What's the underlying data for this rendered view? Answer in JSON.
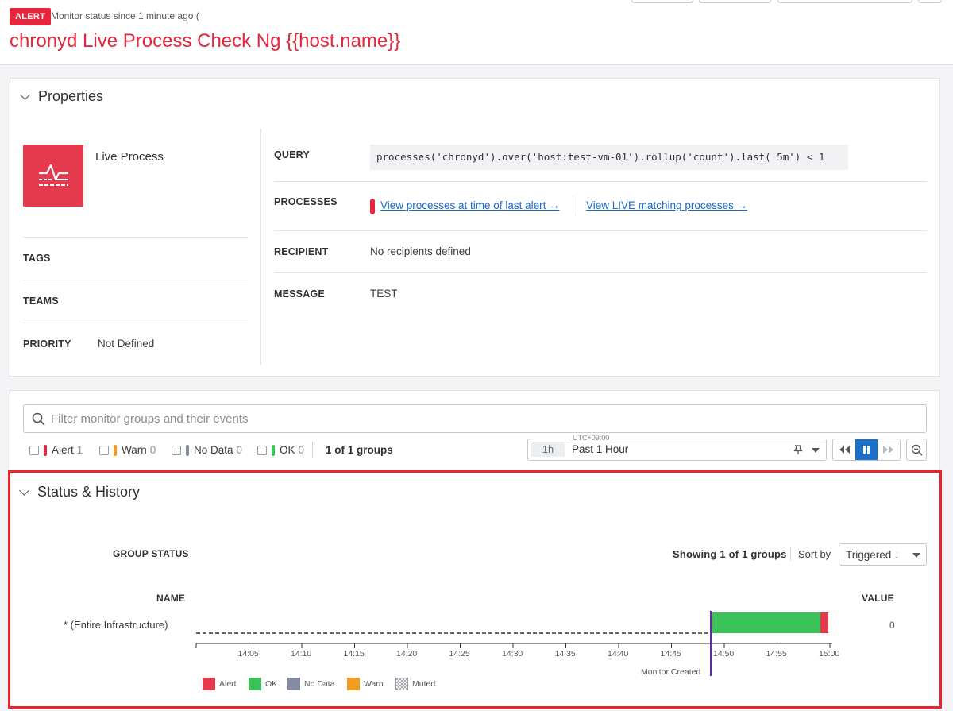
{
  "header": {
    "badge": "ALERT",
    "since": "Monitor status since 1 minute ago (",
    "title": "chronyd Live Process Check Ng {{host.name}}"
  },
  "properties": {
    "section_title": "Properties",
    "monitor_type": "Live Process",
    "tags_label": "TAGS",
    "teams_label": "TEAMS",
    "priority_label": "PRIORITY",
    "priority_value": "Not Defined",
    "query_label": "QUERY",
    "query_value": "processes('chronyd').over('host:test-vm-01').rollup('count').last('5m') < 1",
    "processes_label": "PROCESSES",
    "link_last_alert": "View processes at time of last alert →",
    "link_live": "View LIVE matching processes →",
    "recipient_label": "RECIPIENT",
    "recipient_value": "No recipients defined",
    "message_label": "MESSAGE",
    "message_value": "TEST"
  },
  "filters": {
    "search_placeholder": "Filter monitor groups and their events",
    "items": [
      {
        "label": "Alert",
        "count": "1",
        "color": "#e5263d"
      },
      {
        "label": "Warn",
        "count": "0",
        "color": "#f59a23"
      },
      {
        "label": "No Data",
        "count": "0",
        "color": "#858ba0"
      },
      {
        "label": "OK",
        "count": "0",
        "color": "#3bc35a"
      }
    ],
    "groups_count": "1 of 1 groups",
    "timezone": "UTC+09:00",
    "time_badge": "1h",
    "time_range": "Past 1 Hour"
  },
  "status_history": {
    "section_title": "Status & History",
    "group_status_label": "GROUP STATUS",
    "showing": "Showing 1 of 1 groups",
    "sort_by_label": "Sort by",
    "sort_value": "Triggered ↓",
    "name_header": "NAME",
    "value_header": "VALUE",
    "row_name": "* (Entire Infrastructure)",
    "row_value": "0",
    "monitor_created": "Monitor Created",
    "ticks": [
      "14:05",
      "14:10",
      "14:15",
      "14:20",
      "14:25",
      "14:30",
      "14:35",
      "14:40",
      "14:45",
      "14:50",
      "14:55",
      "15:00"
    ],
    "legend": [
      {
        "label": "Alert",
        "color": "#e5394d"
      },
      {
        "label": "OK",
        "color": "#3bc35a"
      },
      {
        "label": "No Data",
        "color": "#858ba0"
      },
      {
        "label": "Warn",
        "color": "#f59a23"
      },
      {
        "label": "Muted",
        "color": "pattern"
      }
    ]
  }
}
